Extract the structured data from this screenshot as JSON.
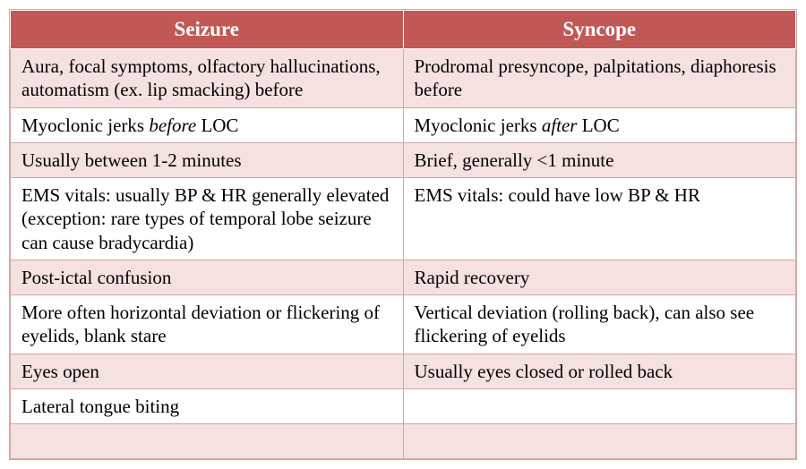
{
  "table": {
    "columns": [
      "Seizure",
      "Syncope"
    ],
    "header_bg": "#c15856",
    "header_fg": "#ffffff",
    "tint_bg": "#f5e1e0",
    "plain_bg": "#ffffff",
    "border_color": "#d4a5a5",
    "font_family": "Georgia, Times New Roman, serif",
    "header_fontsize": 23,
    "cell_fontsize": 21,
    "rows": [
      {
        "tint": true,
        "seizure": "Aura, focal symptoms, olfactory hallucinations, automatism (ex. lip smacking) before",
        "syncope": "Prodromal presyncope, palpitations, diaphoresis before"
      },
      {
        "tint": false,
        "seizure_pre": "Myoclonic jerks ",
        "seizure_em": "before",
        "seizure_post": " LOC",
        "syncope_pre": "Myoclonic jerks ",
        "syncope_em": "after",
        "syncope_post": " LOC"
      },
      {
        "tint": true,
        "seizure": "Usually between 1-2 minutes",
        "syncope": "Brief, generally <1 minute"
      },
      {
        "tint": false,
        "seizure": "EMS vitals: usually BP & HR generally elevated (exception: rare types of temporal lobe seizure can cause bradycardia)",
        "syncope": "EMS vitals: could have low BP & HR"
      },
      {
        "tint": true,
        "seizure": "Post-ictal confusion",
        "syncope": "Rapid recovery"
      },
      {
        "tint": false,
        "seizure": "More often horizontal deviation or flickering of eyelids, blank stare",
        "syncope": "Vertical deviation (rolling back), can also see flickering of eyelids"
      },
      {
        "tint": true,
        "seizure": "Eyes open",
        "syncope": "Usually eyes closed or rolled back"
      },
      {
        "tint": false,
        "seizure": "Lateral tongue biting",
        "syncope": ""
      },
      {
        "tint": true,
        "seizure": "",
        "syncope": ""
      }
    ]
  }
}
